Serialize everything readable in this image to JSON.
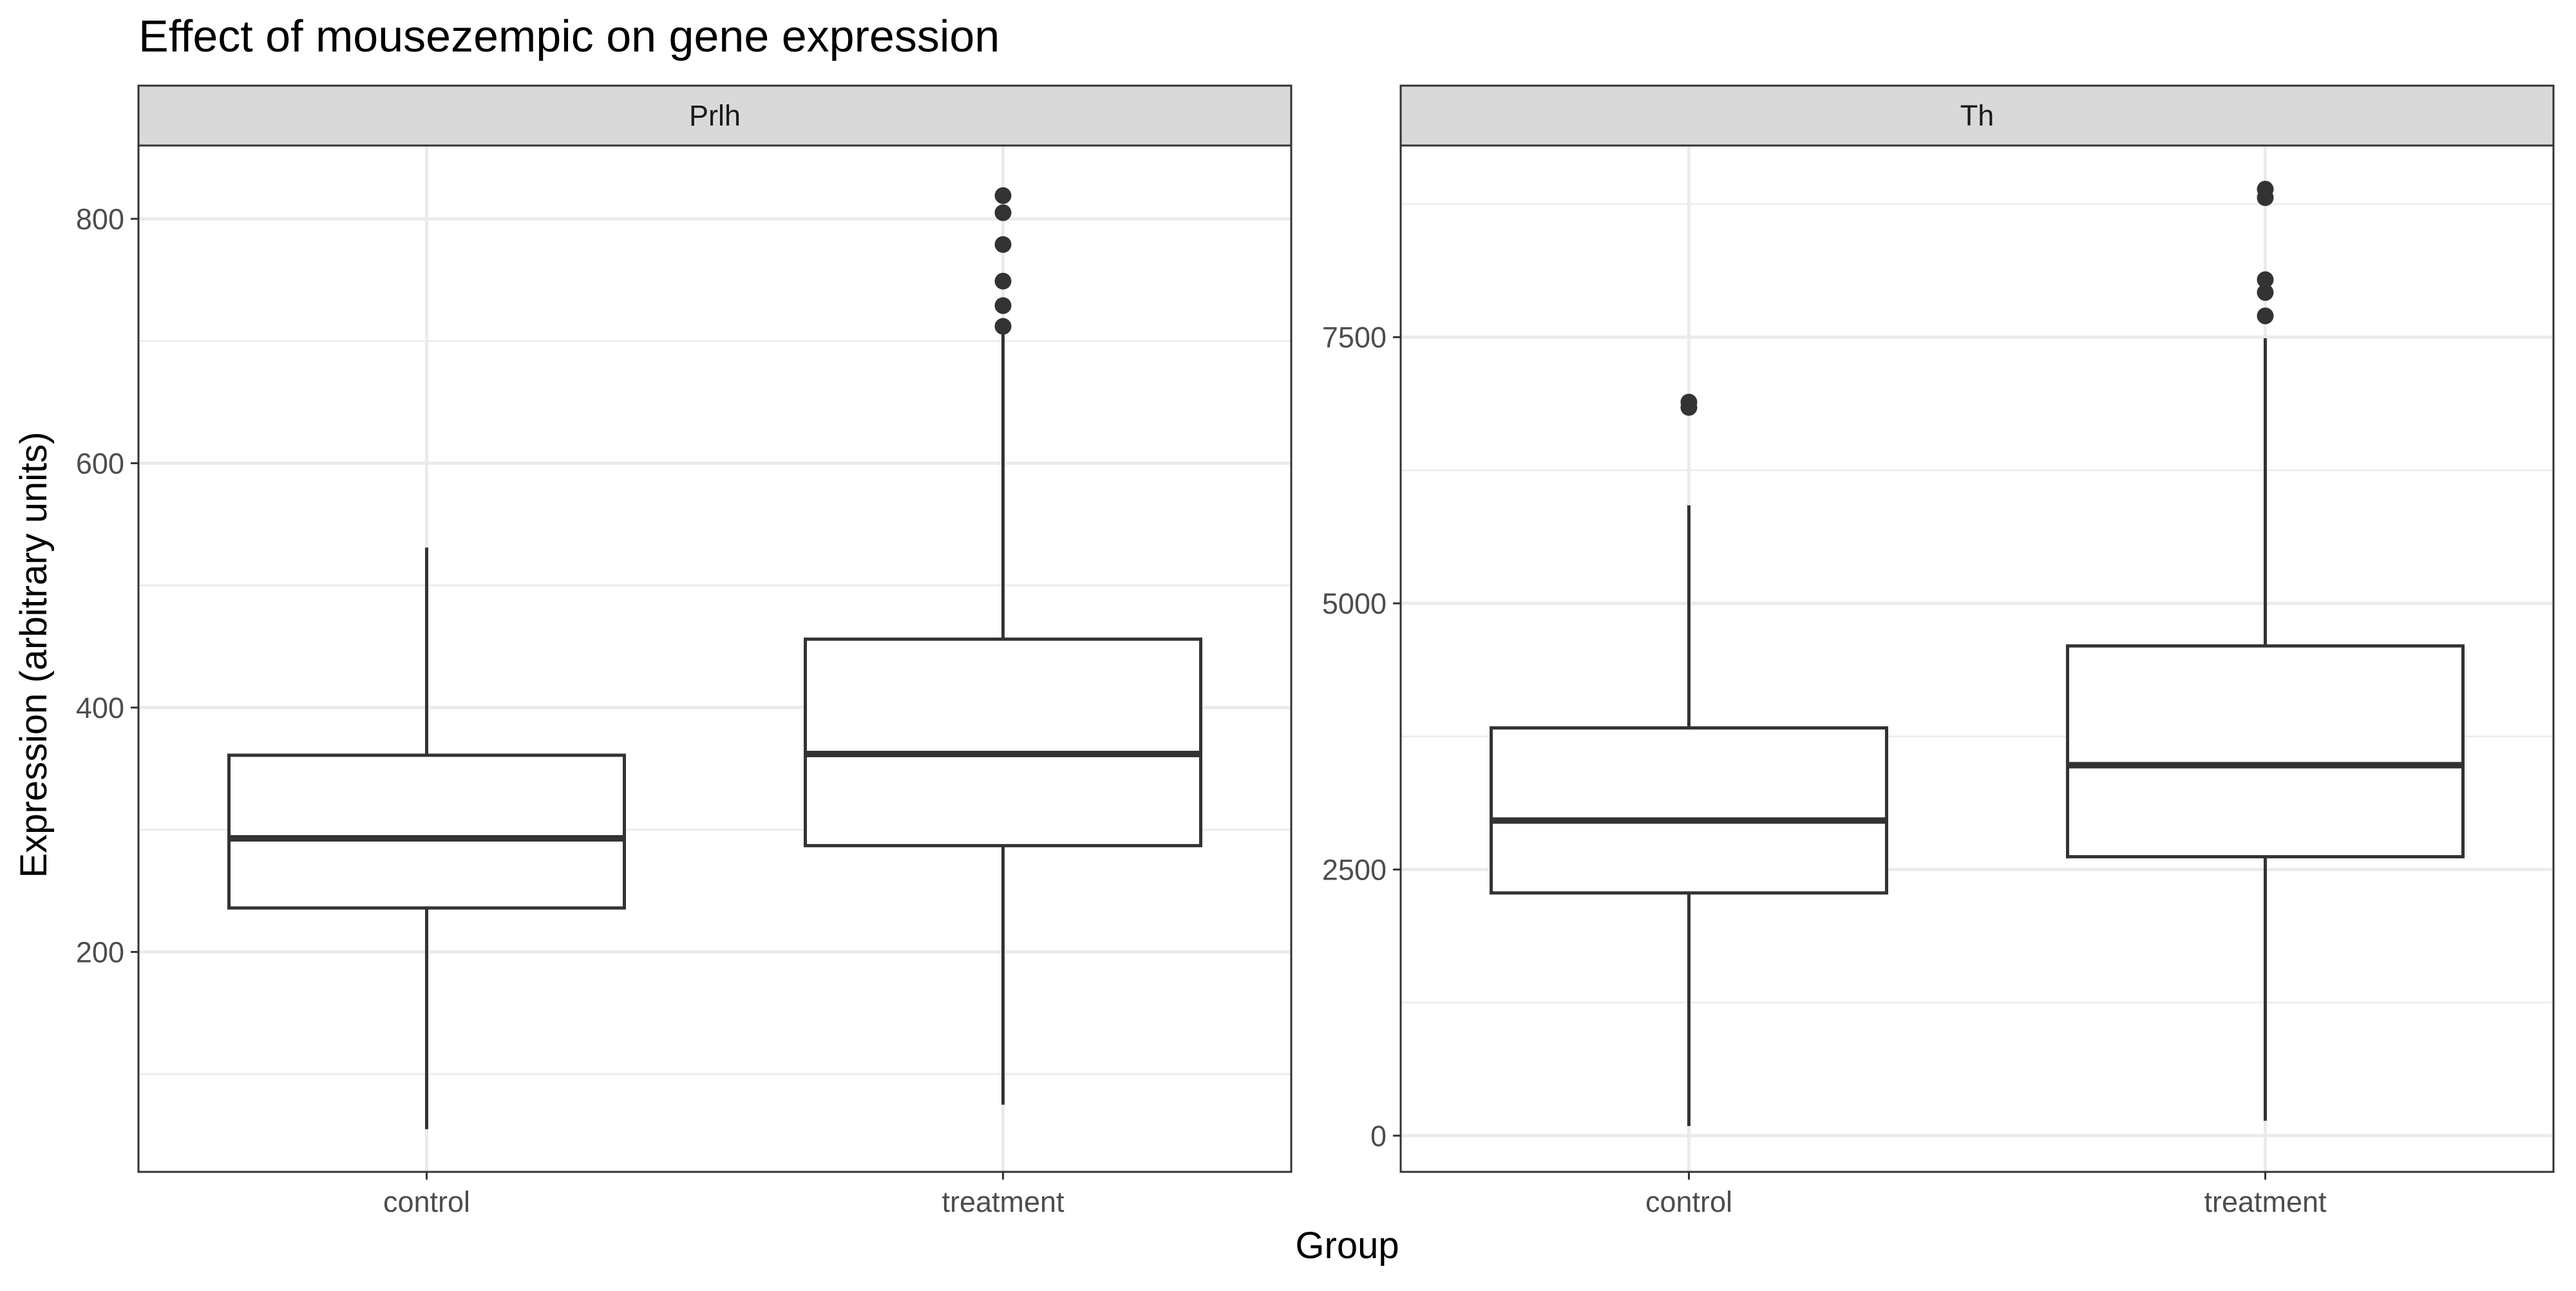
{
  "chart_data": {
    "type": "boxplot",
    "title": "Effect of mousezempic on gene expression",
    "xlabel": "Group",
    "ylabel": "Expression (arbitrary units)",
    "categories": [
      "control",
      "treatment"
    ],
    "grid": true,
    "facets": [
      {
        "name": "Prlh",
        "ylim": [
          20,
          860
        ],
        "y_major_ticks": [
          200,
          400,
          600,
          800
        ],
        "y_tick_labels": [
          "200",
          "400",
          "600",
          "800"
        ],
        "y_minor_ticks": [
          100,
          300,
          500,
          700
        ],
        "boxes": [
          {
            "category": "control",
            "min": 55,
            "q1": 236,
            "median": 293,
            "q3": 361,
            "max": 531,
            "outliers": []
          },
          {
            "category": "treatment",
            "min": 75,
            "q1": 287,
            "median": 362,
            "q3": 456,
            "max": 708,
            "outliers": [
              712,
              729,
              749,
              779,
              805,
              819
            ]
          }
        ]
      },
      {
        "name": "Th",
        "ylim": [
          -340,
          9300
        ],
        "y_major_ticks": [
          0,
          2500,
          5000,
          7500
        ],
        "y_tick_labels": [
          "0",
          "2500",
          "5000",
          "7500"
        ],
        "y_minor_ticks": [
          1250,
          3750,
          6250,
          8750
        ],
        "boxes": [
          {
            "category": "control",
            "min": 90,
            "q1": 2280,
            "median": 2960,
            "q3": 3830,
            "max": 5920,
            "outliers": [
              6840,
              6890
            ]
          },
          {
            "category": "treatment",
            "min": 140,
            "q1": 2620,
            "median": 3480,
            "q3": 4600,
            "max": 7490,
            "outliers": [
              7700,
              7920,
              8040,
              8810,
              8890
            ]
          }
        ]
      }
    ]
  }
}
